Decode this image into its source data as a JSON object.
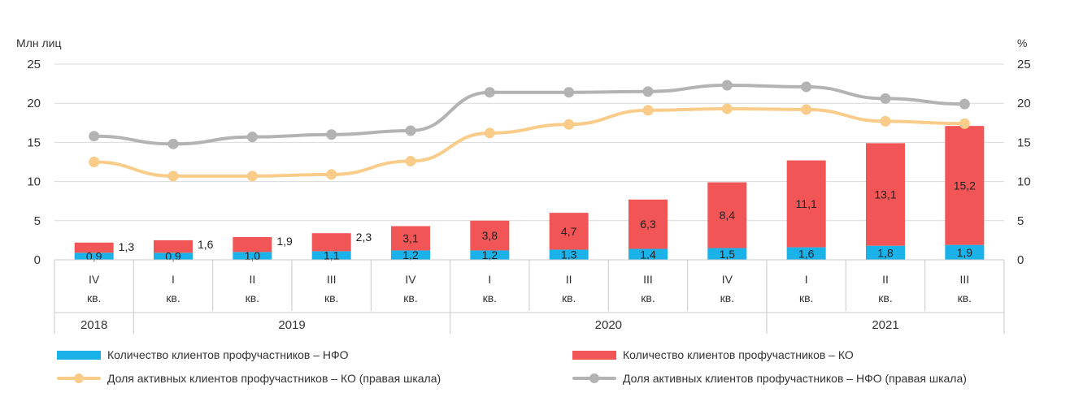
{
  "chart_data": {
    "type": "bar",
    "left_unit": "Млн лиц",
    "right_unit": "%",
    "left_ticks": [
      "0",
      "5",
      "10",
      "15",
      "20",
      "25"
    ],
    "right_ticks": [
      "0",
      "5",
      "10",
      "15",
      "20",
      "25"
    ],
    "ylim": [
      0,
      25
    ],
    "y2lim": [
      0,
      25
    ],
    "grid": true,
    "legend_position": "bottom",
    "quarters": [
      "IV",
      "I",
      "II",
      "III",
      "IV",
      "I",
      "II",
      "III",
      "IV",
      "I",
      "II",
      "III"
    ],
    "quarter_suffix": "кв.",
    "years": [
      {
        "label": "2018",
        "span": 1
      },
      {
        "label": "2019",
        "span": 4
      },
      {
        "label": "2020",
        "span": 4
      },
      {
        "label": "2021",
        "span": 3
      }
    ],
    "series": [
      {
        "name": "Количество клиентов профучастников – НФО",
        "kind": "bar",
        "color": "#1ab2e8",
        "values": [
          0.9,
          0.9,
          1.0,
          1.1,
          1.2,
          1.2,
          1.3,
          1.4,
          1.5,
          1.6,
          1.8,
          1.9
        ],
        "labels": [
          "0,9",
          "0,9",
          "1,0",
          "1,1",
          "1,2",
          "1,2",
          "1,3",
          "1,4",
          "1,5",
          "1,6",
          "1,8",
          "1,9"
        ]
      },
      {
        "name": "Количество клиентов профучастников – КО",
        "kind": "bar",
        "color": "#f25555",
        "values": [
          1.3,
          1.6,
          1.9,
          2.3,
          3.1,
          3.8,
          4.7,
          6.3,
          8.4,
          11.1,
          13.1,
          15.2
        ],
        "labels": [
          "1,3",
          "1,6",
          "1,9",
          "2,3",
          "3,1",
          "3,8",
          "4,7",
          "6,3",
          "8,4",
          "11,1",
          "13,1",
          "15,2"
        ]
      },
      {
        "name": "Доля активных клиентов профучастников – КО (правая шкала)",
        "kind": "line",
        "color": "#f9cc8a",
        "values": [
          12.5,
          10.7,
          10.7,
          10.9,
          12.6,
          16.2,
          17.3,
          19.1,
          19.3,
          19.2,
          17.7,
          17.4
        ]
      },
      {
        "name": "Доля активных клиентов профучастников – НФО (правая шкала)",
        "kind": "line",
        "color": "#b3b3b3",
        "values": [
          15.8,
          14.8,
          15.7,
          16.0,
          16.5,
          21.4,
          21.4,
          21.5,
          22.3,
          22.1,
          20.6,
          19.9
        ]
      }
    ]
  }
}
